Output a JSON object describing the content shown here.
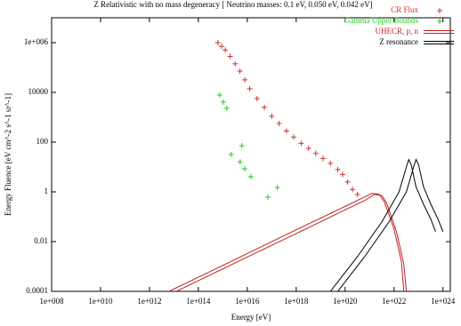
{
  "chart_data": {
    "type": "line",
    "title": "Z Relativistic with no mass degeneracy [ Neutrino masses: 0.1 eV, 0.050 eV, 0.042 eV]",
    "x_label": "Energy [eV]",
    "y_label": "Energy Fluence [eV cm^-2 s^-1 sr^-1]",
    "log_x": true,
    "log_y": true,
    "legend": "top-right",
    "xlim": [
      100000000.0,
      2e+24
    ],
    "ylim": [
      0.0001,
      10000000.0
    ],
    "xticks": [
      {
        "value": 100000000.0,
        "label": "1e+008"
      },
      {
        "value": 10000000000.0,
        "label": "1e+010"
      },
      {
        "value": 1000000000000.0,
        "label": "1e+012"
      },
      {
        "value": 100000000000000.0,
        "label": "1e+014"
      },
      {
        "value": 1e+16,
        "label": "1e+016"
      },
      {
        "value": 1e+18,
        "label": "1e+018"
      },
      {
        "value": 1e+20,
        "label": "1e+020"
      },
      {
        "value": 1e+22,
        "label": "1e+022"
      },
      {
        "value": 1e+24,
        "label": "1e+024"
      }
    ],
    "yticks": [
      0.0001,
      0.01,
      1,
      100,
      10000,
      {
        "value": 1000000.0,
        "label": "1e+006"
      }
    ],
    "series": [
      {
        "name": "CR Flux",
        "color": "#d03030",
        "style": "points",
        "x": [
          630000000000000.0,
          890000000000000.0,
          1260000000000000.0,
          2000000000000000.0,
          3200000000000000.0,
          5000000000000000.0,
          7900000000000000.0,
          1.26e+16,
          2.5e+16,
          5e+16,
          1e+17,
          2e+17,
          4e+17,
          7.9e+17,
          1.6e+18,
          3.2e+18,
          6.3e+18,
          1.26e+19,
          2.5e+19,
          5e+19,
          7.9e+19,
          1.26e+20,
          2e+20,
          3.2e+20
        ],
        "values": [
          1000000.0,
          710000.0,
          500000.0,
          280000.0,
          140000.0,
          71000.0,
          32000.0,
          14000.0,
          5600,
          2500,
          1100,
          560,
          280,
          160,
          89,
          56,
          35,
          22,
          14,
          7.9,
          5.0,
          2.5,
          1.26,
          0.79
        ]
      },
      {
        "name": "Gamma Upper Bounds",
        "color": "#22cc22",
        "style": "points",
        "x": [
          740000000000000.0,
          1050000000000000.0,
          1450000000000000.0,
          2200000000000000.0,
          6000000000000000.0,
          5100000000000000.0,
          7800000000000000.0,
          1.4e+16,
          6.9e+16,
          1.7e+17
        ],
        "values": [
          7800,
          4100,
          2300,
          32,
          72,
          16,
          8.5,
          4.1,
          0.61,
          1.5
        ]
      },
      {
        "name": "UHECR, p, n",
        "color": "#c02020",
        "style": "line",
        "x": [
          6300000000000.0,
          100000000000000.0,
          1e+16,
          1e+18,
          1e+20,
          5e+20,
          1.26e+21,
          2.5e+21,
          4e+21,
          1e+22,
          2e+22,
          2.5e+22,
          null,
          12600000000000.0,
          100000000000000.0,
          1e+16,
          1e+18,
          1e+20,
          6.3e+20,
          1.6e+21,
          3.2e+21,
          5e+21,
          1.26e+22,
          2.5e+22,
          3.2e+22
        ],
        "values": [
          0.0001,
          0.00037,
          0.0033,
          0.03,
          0.26,
          0.56,
          0.87,
          0.79,
          0.4,
          0.032,
          0.0016,
          0.0001,
          null,
          0.0001,
          0.00027,
          0.0024,
          0.021,
          0.19,
          0.45,
          0.79,
          0.71,
          0.35,
          0.025,
          0.0013,
          0.0001
        ]
      },
      {
        "name": "Z resonance",
        "color": "#000000",
        "style": "line",
        "x": [
          2.5e+19,
          3.2e+20,
          3.2e+21,
          1.6e+22,
          3.2e+22,
          4e+22,
          5e+22,
          7.9e+22,
          1.6e+23,
          3.2e+23,
          5e+23,
          null,
          5e+19,
          6.3e+20,
          6.3e+21,
          3.2e+22,
          6.3e+22,
          7.9e+22,
          1e+23,
          1.6e+23,
          3.2e+23,
          6.3e+23,
          1e+24
        ],
        "values": [
          0.0001,
          0.0025,
          0.063,
          1,
          10,
          20,
          12.6,
          1.6,
          0.32,
          0.079,
          0.025,
          null,
          0.0001,
          0.0025,
          0.063,
          1,
          10,
          20,
          12.6,
          1.6,
          0.32,
          0.079,
          0.025
        ]
      }
    ]
  }
}
